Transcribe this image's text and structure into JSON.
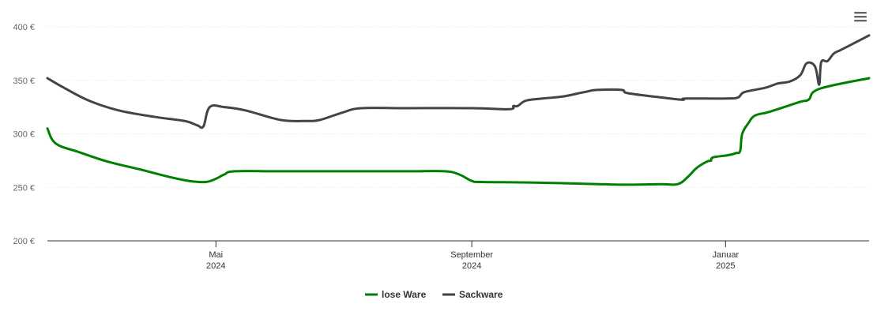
{
  "chart_data": {
    "type": "line",
    "title": "",
    "xlabel": "",
    "ylabel": "",
    "ylim": [
      200,
      400
    ],
    "yticks": [
      {
        "value": 200,
        "label": "200 €"
      },
      {
        "value": 250,
        "label": "250 €"
      },
      {
        "value": 300,
        "label": "300 €"
      },
      {
        "value": 350,
        "label": "350 €"
      },
      {
        "value": 400,
        "label": "400 €"
      }
    ],
    "xlim": [
      "2024-02-10",
      "2025-03-11"
    ],
    "xticks": [
      {
        "date": "2024-05-01",
        "label1": "Mai",
        "label2": "2024"
      },
      {
        "date": "2024-09-01",
        "label1": "September",
        "label2": "2024"
      },
      {
        "date": "2025-01-01",
        "label1": "Januar",
        "label2": "2025"
      }
    ],
    "grid": true,
    "legend_position": "bottom-center",
    "series": [
      {
        "name": "lose Ware",
        "color": "#008000",
        "points": [
          [
            "2024-02-10",
            305
          ],
          [
            "2024-02-14",
            291
          ],
          [
            "2024-02-25",
            283
          ],
          [
            "2024-03-10",
            274
          ],
          [
            "2024-03-25",
            267
          ],
          [
            "2024-04-08",
            260
          ],
          [
            "2024-04-18",
            256
          ],
          [
            "2024-04-26",
            255
          ],
          [
            "2024-05-01",
            258
          ],
          [
            "2024-05-05",
            262
          ],
          [
            "2024-05-10",
            265
          ],
          [
            "2024-05-31",
            265
          ],
          [
            "2024-07-01",
            265
          ],
          [
            "2024-08-01",
            265
          ],
          [
            "2024-08-19",
            265
          ],
          [
            "2024-08-26",
            262
          ],
          [
            "2024-09-01",
            256
          ],
          [
            "2024-09-06",
            255
          ],
          [
            "2024-10-01",
            254.5
          ],
          [
            "2024-11-01",
            253
          ],
          [
            "2024-11-15",
            252.5
          ],
          [
            "2024-12-01",
            253
          ],
          [
            "2024-12-09",
            253
          ],
          [
            "2024-12-14",
            260
          ],
          [
            "2024-12-18",
            268
          ],
          [
            "2024-12-23",
            274
          ],
          [
            "2024-12-25",
            275
          ],
          [
            "2024-12-26",
            278
          ],
          [
            "2025-01-02",
            280
          ],
          [
            "2025-01-06",
            282
          ],
          [
            "2025-01-08",
            284
          ],
          [
            "2025-01-09",
            300
          ],
          [
            "2025-01-12",
            310
          ],
          [
            "2025-01-15",
            317
          ],
          [
            "2025-01-21",
            320
          ],
          [
            "2025-01-26",
            323
          ],
          [
            "2025-02-06",
            330
          ],
          [
            "2025-02-10",
            332
          ],
          [
            "2025-02-15",
            342
          ],
          [
            "2025-03-11",
            352
          ]
        ]
      },
      {
        "name": "Sackware",
        "color": "#434348",
        "points": [
          [
            "2024-02-10",
            352
          ],
          [
            "2024-02-18",
            343
          ],
          [
            "2024-03-01",
            331
          ],
          [
            "2024-03-15",
            322
          ],
          [
            "2024-04-01",
            316
          ],
          [
            "2024-04-16",
            312
          ],
          [
            "2024-04-22",
            308
          ],
          [
            "2024-04-25",
            307
          ],
          [
            "2024-04-28",
            325
          ],
          [
            "2024-05-05",
            325
          ],
          [
            "2024-05-15",
            322
          ],
          [
            "2024-06-01",
            313
          ],
          [
            "2024-06-13",
            312
          ],
          [
            "2024-06-20",
            313
          ],
          [
            "2024-07-01",
            320
          ],
          [
            "2024-07-10",
            324
          ],
          [
            "2024-08-01",
            324
          ],
          [
            "2024-09-01",
            324
          ],
          [
            "2024-09-19",
            323
          ],
          [
            "2024-09-21",
            326
          ],
          [
            "2024-09-23",
            326
          ],
          [
            "2024-09-27",
            331
          ],
          [
            "2024-10-05",
            333
          ],
          [
            "2024-10-15",
            335
          ],
          [
            "2024-10-25",
            339
          ],
          [
            "2024-10-31",
            341
          ],
          [
            "2024-11-12",
            341
          ],
          [
            "2024-11-15",
            338
          ],
          [
            "2024-12-01",
            334
          ],
          [
            "2024-12-10",
            332
          ],
          [
            "2024-12-12",
            332
          ],
          [
            "2024-12-13",
            333
          ],
          [
            "2025-01-01",
            333
          ],
          [
            "2025-01-07",
            334
          ],
          [
            "2025-01-10",
            339
          ],
          [
            "2025-01-20",
            343
          ],
          [
            "2025-01-26",
            347
          ],
          [
            "2025-02-01",
            349
          ],
          [
            "2025-02-06",
            355
          ],
          [
            "2025-02-09",
            366
          ],
          [
            "2025-02-13",
            363
          ],
          [
            "2025-02-15",
            346
          ],
          [
            "2025-02-16",
            367
          ],
          [
            "2025-02-19",
            368
          ],
          [
            "2025-02-22",
            375
          ],
          [
            "2025-02-25",
            378
          ],
          [
            "2025-03-01",
            382
          ],
          [
            "2025-03-11",
            392
          ]
        ]
      }
    ]
  },
  "menu": {
    "icon": "hamburger-menu-icon"
  }
}
